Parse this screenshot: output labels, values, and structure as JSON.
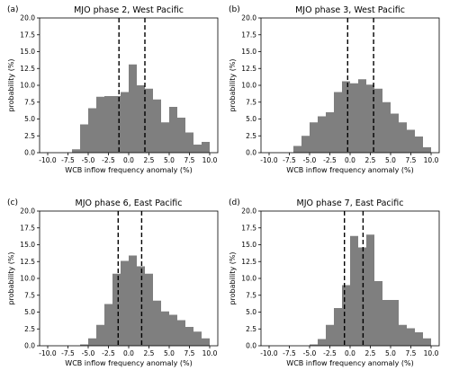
{
  "chart_data": [
    {
      "type": "bar",
      "panel_label": "(a)",
      "title": "MJO phase 2, West Pacific",
      "xlabel": "WCB inflow frequency anomaly (%)",
      "ylabel": "probability (%)",
      "xlim": [
        -11,
        11
      ],
      "ylim": [
        0,
        20
      ],
      "xticks": [
        "-10.0",
        "-7.5",
        "-5.0",
        "-2.5",
        "0.0",
        "2.5",
        "5.0",
        "7.5",
        "10.0"
      ],
      "yticks": [
        "0.0",
        "2.5",
        "5.0",
        "7.5",
        "10.0",
        "12.5",
        "15.0",
        "17.5",
        "20.0"
      ],
      "bin_width": 1,
      "bin_left_edges": [
        -7,
        -6,
        -5,
        -4,
        -3,
        -2,
        -1,
        0,
        1,
        2,
        3,
        4,
        5,
        6,
        7,
        8,
        9
      ],
      "values": [
        0.5,
        4.2,
        6.6,
        8.3,
        8.4,
        8.4,
        9.0,
        13.1,
        10.0,
        9.5,
        7.9,
        4.5,
        6.8,
        5.2,
        3.0,
        1.2,
        1.6
      ],
      "dashed_vlines": [
        -1.2,
        2.0
      ],
      "color": "#7f7f7f",
      "grid": false,
      "legend": "none"
    },
    {
      "type": "bar",
      "panel_label": "(b)",
      "title": "MJO phase 3, West Pacific",
      "xlabel": "WCB inflow frequency anomaly (%)",
      "ylabel": "probability (%)",
      "xlim": [
        -11,
        11
      ],
      "ylim": [
        0,
        20
      ],
      "xticks": [
        "-10.0",
        "-7.5",
        "-5.0",
        "-2.5",
        "0.0",
        "2.5",
        "5.0",
        "7.5",
        "10.0"
      ],
      "yticks": [
        "0.0",
        "2.5",
        "5.0",
        "7.5",
        "10.0",
        "12.5",
        "15.0",
        "17.5",
        "20.0"
      ],
      "bin_width": 1,
      "bin_left_edges": [
        -7,
        -6,
        -5,
        -4,
        -3,
        -2,
        -1,
        0,
        1,
        2,
        3,
        4,
        5,
        6,
        7,
        8,
        9
      ],
      "values": [
        1.0,
        2.5,
        4.5,
        5.4,
        6.0,
        9.0,
        10.6,
        10.3,
        10.9,
        10.1,
        9.5,
        7.5,
        5.8,
        4.5,
        3.4,
        2.4,
        0.8
      ],
      "dashed_vlines": [
        -0.3,
        2.9
      ],
      "color": "#7f7f7f",
      "grid": false,
      "legend": "none"
    },
    {
      "type": "bar",
      "panel_label": "(c)",
      "title": "MJO phase 6, East Pacific",
      "xlabel": "WCB inflow frequency anomaly (%)",
      "ylabel": "probability (%)",
      "xlim": [
        -11,
        11
      ],
      "ylim": [
        0,
        20
      ],
      "xticks": [
        "-10.0",
        "-7.5",
        "-5.0",
        "-2.5",
        "0.0",
        "2.5",
        "5.0",
        "7.5",
        "10.0"
      ],
      "yticks": [
        "0.0",
        "2.5",
        "5.0",
        "7.5",
        "10.0",
        "12.5",
        "15.0",
        "17.5",
        "20.0"
      ],
      "bin_width": 1,
      "bin_left_edges": [
        -6,
        -5,
        -4,
        -3,
        -2,
        -1,
        0,
        1,
        2,
        3,
        4,
        5,
        6,
        7,
        8,
        9
      ],
      "values": [
        0.2,
        1.1,
        3.1,
        6.2,
        10.7,
        12.6,
        13.4,
        11.8,
        10.7,
        6.7,
        5.1,
        4.6,
        3.8,
        2.8,
        2.1,
        1.1
      ],
      "dashed_vlines": [
        -1.3,
        1.6
      ],
      "color": "#7f7f7f",
      "grid": false,
      "legend": "none"
    },
    {
      "type": "bar",
      "panel_label": "(d)",
      "title": "MJO phase 7, East Pacific",
      "xlabel": "WCB inflow frequency anomaly (%)",
      "ylabel": "probability (%)",
      "xlim": [
        -11,
        11
      ],
      "ylim": [
        0,
        20
      ],
      "xticks": [
        "-10.0",
        "-7.5",
        "-5.0",
        "-2.5",
        "0.0",
        "2.5",
        "5.0",
        "7.5",
        "10.0"
      ],
      "yticks": [
        "0.0",
        "2.5",
        "5.0",
        "7.5",
        "10.0",
        "12.5",
        "15.0",
        "17.5",
        "20.0"
      ],
      "bin_width": 1,
      "bin_left_edges": [
        -5,
        -4,
        -3,
        -2,
        -1,
        0,
        1,
        2,
        3,
        4,
        5,
        6,
        7,
        8,
        9
      ],
      "values": [
        0.2,
        1.0,
        3.1,
        5.6,
        9.0,
        16.3,
        14.6,
        16.5,
        9.6,
        6.8,
        6.8,
        3.1,
        2.6,
        2.0,
        1.1
      ],
      "dashed_vlines": [
        -0.7,
        1.6
      ],
      "color": "#7f7f7f",
      "grid": false,
      "legend": "none"
    }
  ]
}
